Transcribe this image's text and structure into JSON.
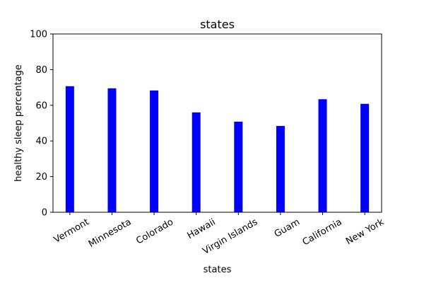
{
  "chart_data": {
    "type": "bar",
    "title": "states",
    "xlabel": "states",
    "ylabel": "healthy sleep percentage",
    "categories": [
      "Vermont",
      "Minnesota",
      "Colorado",
      "Hawaii",
      "Virgin Islands",
      "Guam",
      "California",
      "New York"
    ],
    "values": [
      70.7,
      69.5,
      68.3,
      56.0,
      50.8,
      48.4,
      63.4,
      60.8
    ],
    "ylim": [
      0,
      100
    ],
    "yticks": [
      0,
      20,
      40,
      60,
      80,
      100
    ],
    "bar_color": "#0000ff",
    "grid": false,
    "legend": false
  }
}
